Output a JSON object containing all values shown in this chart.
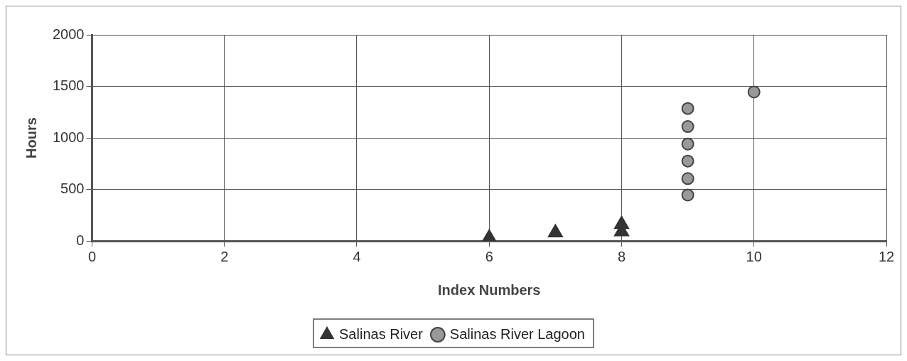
{
  "chart_data": {
    "type": "scatter",
    "xlabel": "Index Numbers",
    "ylabel": "Hours",
    "xlim": [
      0,
      12
    ],
    "xticks": [
      0,
      2,
      4,
      6,
      8,
      10,
      12
    ],
    "ylim": [
      0,
      2000
    ],
    "yticks": [
      0,
      500,
      1000,
      1500,
      2000
    ],
    "grid": true,
    "legend": "bottom",
    "series": [
      {
        "name": "Salinas River",
        "color": "#333333",
        "marker": "triangle",
        "x": [
          6,
          7,
          8,
          8
        ],
        "values": [
          30,
          80,
          90,
          160
        ]
      },
      {
        "name": "Salinas River Lagoon",
        "color": "#999999",
        "marker": "circle",
        "x": [
          9,
          9,
          9,
          9,
          9,
          9,
          10
        ],
        "values": [
          445,
          605,
          775,
          940,
          1110,
          1285,
          1445
        ]
      }
    ]
  }
}
